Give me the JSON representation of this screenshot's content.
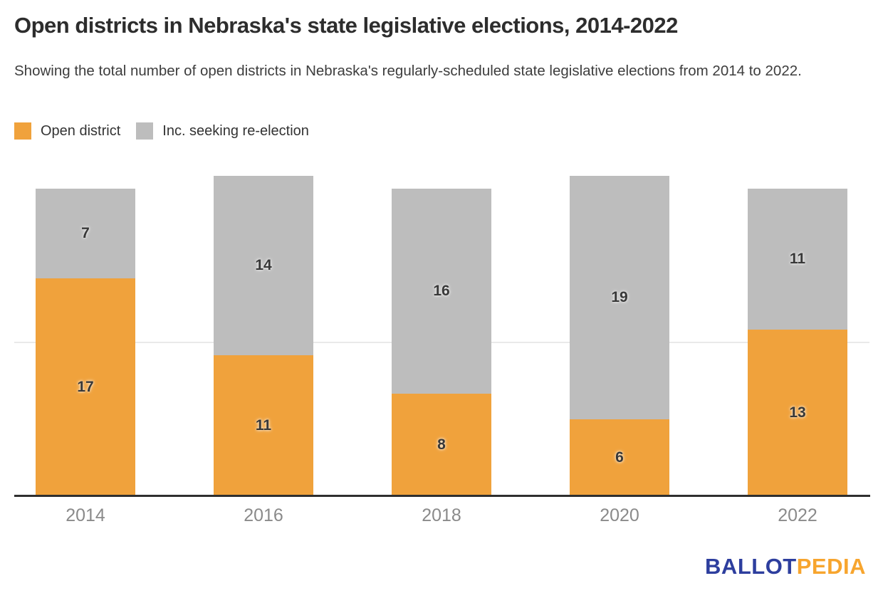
{
  "header": {
    "title": "Open districts in Nebraska's state legislative elections, 2014-2022",
    "subtitle": "Showing the total number of open districts in Nebraska's regularly-scheduled state legislative elections from 2014 to 2022."
  },
  "legend": [
    {
      "label": "Open district",
      "color": "#F0A23C"
    },
    {
      "label": "Inc. seeking re-election",
      "color": "#BDBDBD"
    }
  ],
  "chart_data": {
    "type": "bar",
    "stacked": true,
    "title": "Open districts in Nebraska's state legislative elections, 2014-2022",
    "categories": [
      "2014",
      "2016",
      "2018",
      "2020",
      "2022"
    ],
    "series": [
      {
        "name": "Open district",
        "color": "#F0A23C",
        "values": [
          17,
          11,
          8,
          6,
          13
        ]
      },
      {
        "name": "Inc. seeking re-election",
        "color": "#BDBDBD",
        "values": [
          7,
          14,
          16,
          19,
          11
        ]
      }
    ],
    "totals": [
      24,
      25,
      24,
      25,
      24
    ],
    "xlabel": "",
    "ylabel": "",
    "ylim": [
      0,
      25
    ],
    "gridlines": [
      12
    ],
    "grid": "single light horizontal gridline, y-axis hidden",
    "legend_position": "top-left",
    "data_labels": true,
    "data_label_color": "#383838",
    "axis_line_color": "#2f2f2f",
    "x_tick_color": "#8a8a8a"
  },
  "footer": {
    "logo_part1": "BALLOT",
    "logo_part2": "PEDIA",
    "logo_color1": "#2D3E9E",
    "logo_color2": "#F7A52E"
  }
}
